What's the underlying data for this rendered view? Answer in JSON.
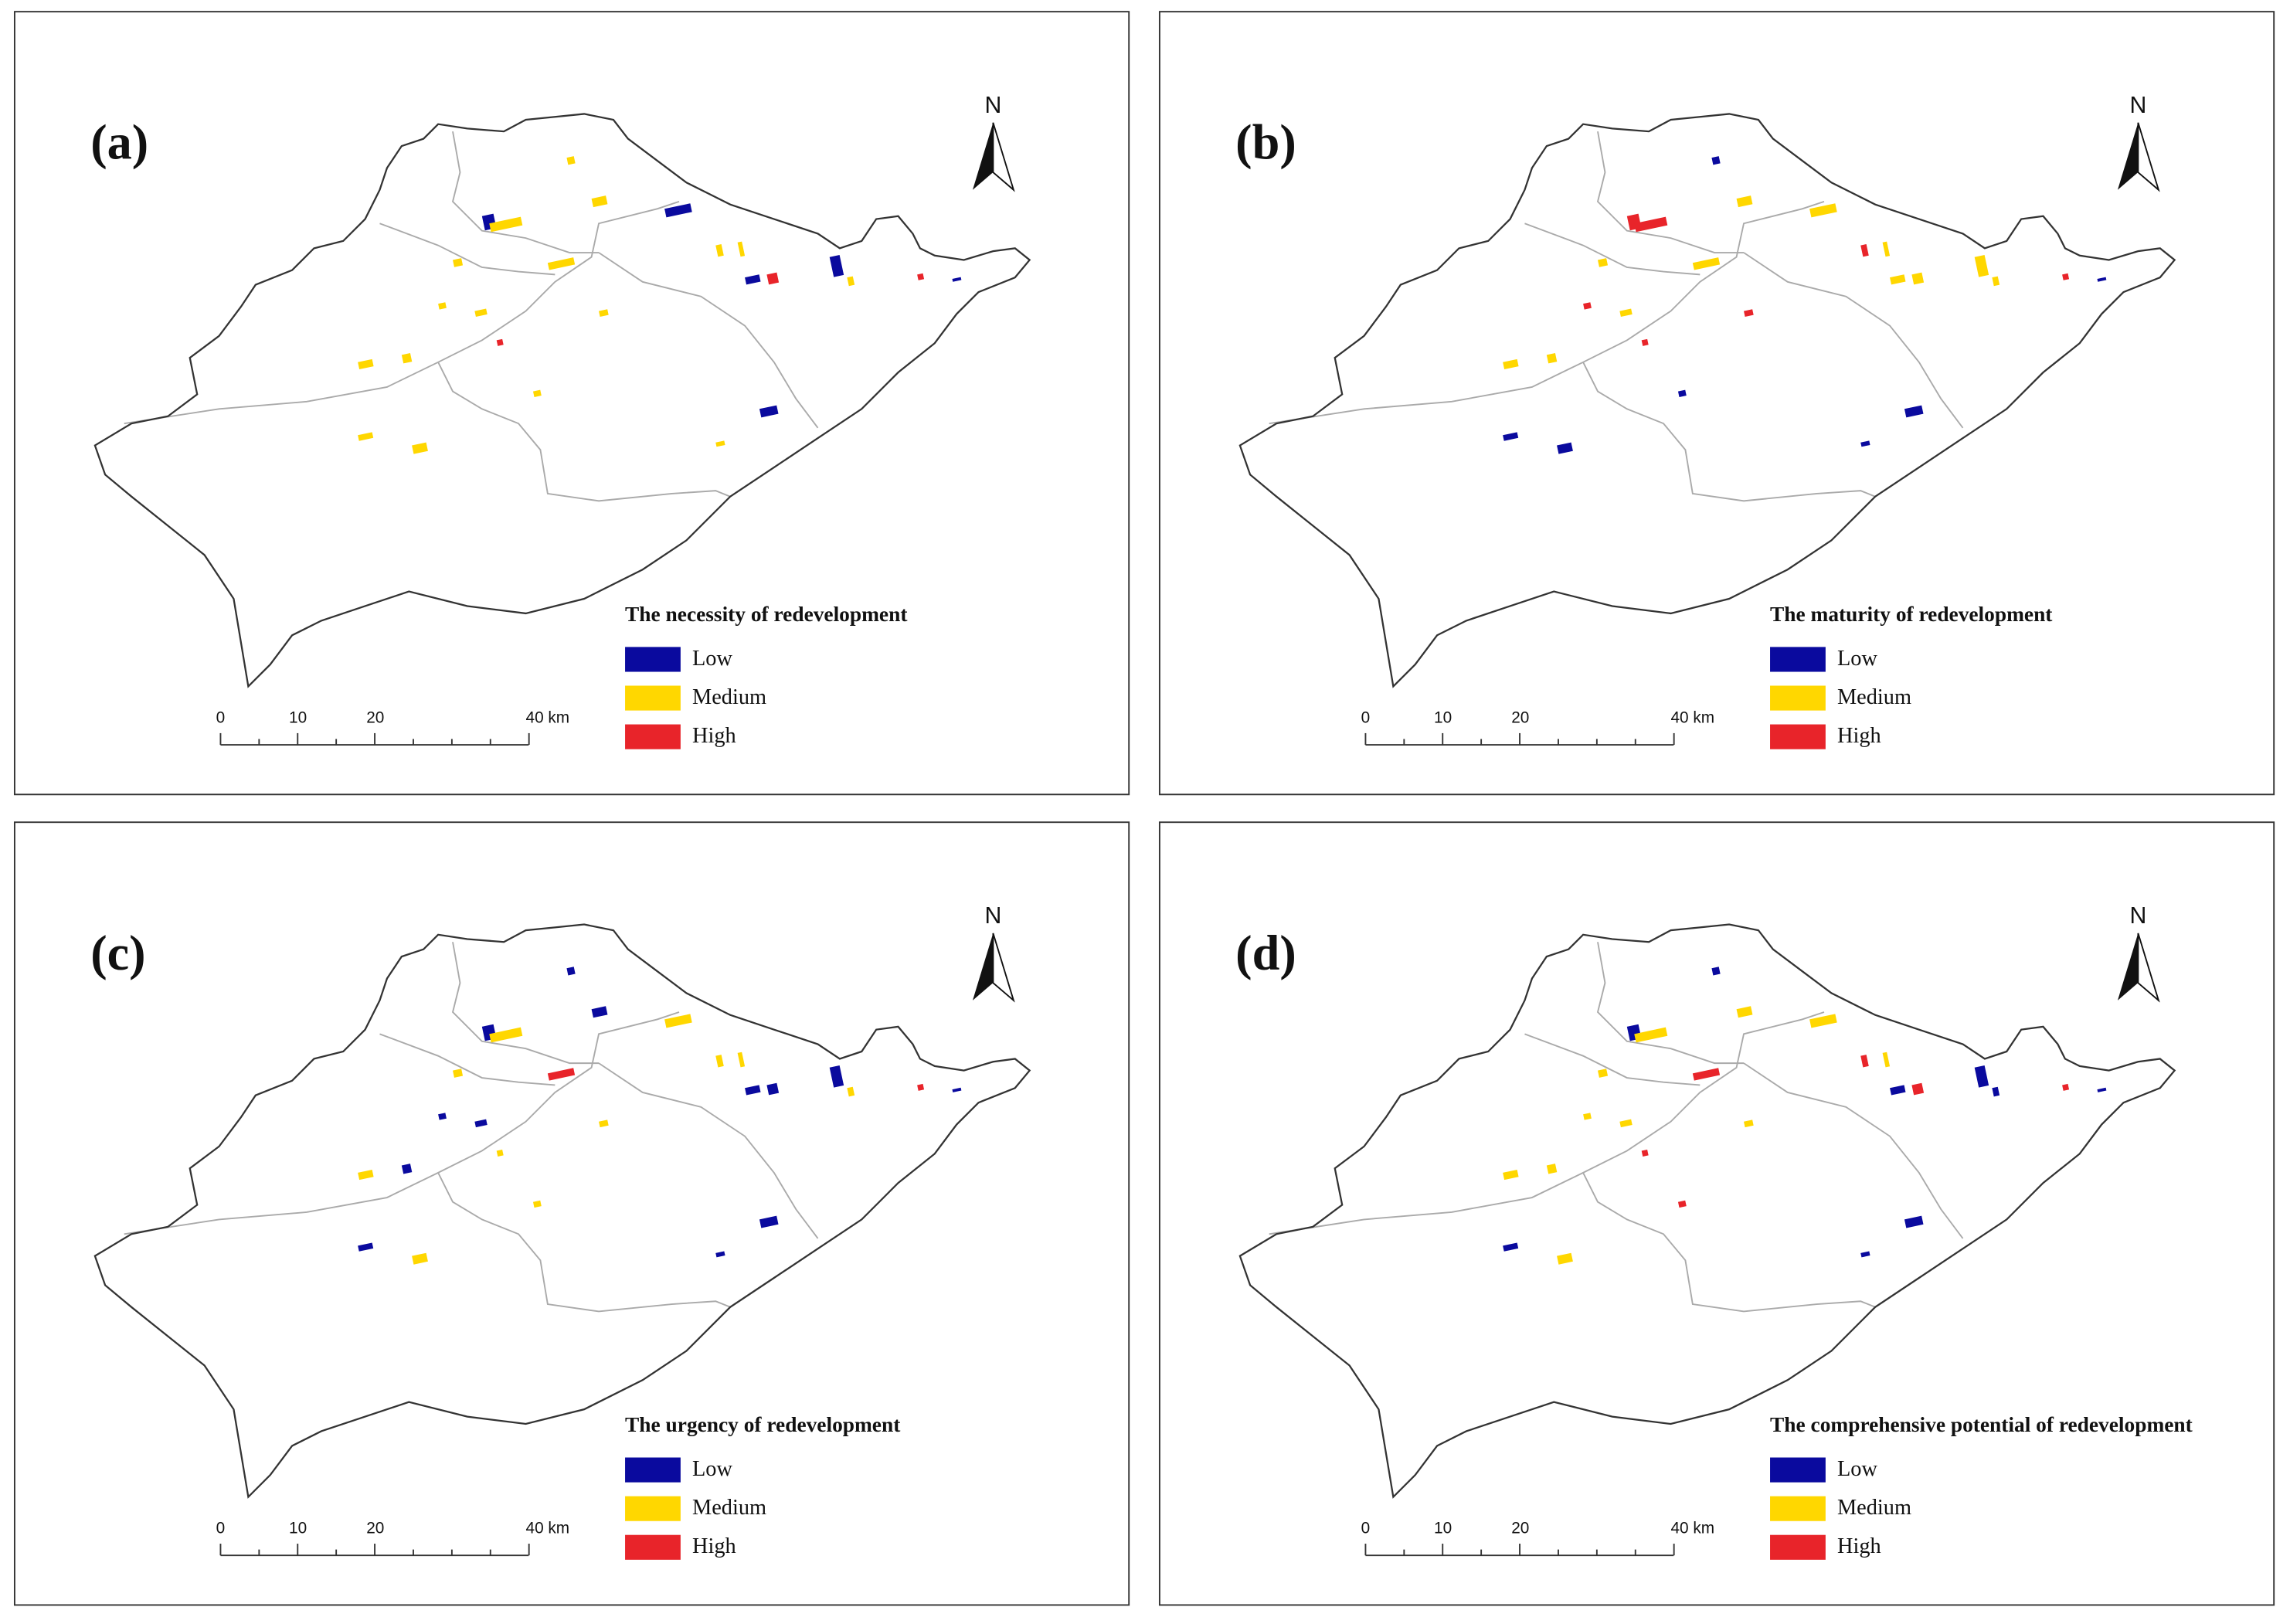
{
  "panels": [
    {
      "label": "(a)",
      "north": "N",
      "legend_title": "The necessity of redevelopment",
      "legend": [
        {
          "label": "Low",
          "color": "#0a0a9e"
        },
        {
          "label": "Medium",
          "color": "#ffd700"
        },
        {
          "label": "High",
          "color": "#e8242a"
        }
      ],
      "scale_labels": [
        "0",
        "10",
        "20",
        "40 km"
      ]
    },
    {
      "label": "(b)",
      "north": "N",
      "legend_title": "The maturity of redevelopment",
      "legend": [
        {
          "label": "Low",
          "color": "#0a0a9e"
        },
        {
          "label": "Medium",
          "color": "#ffd700"
        },
        {
          "label": "High",
          "color": "#e8242a"
        }
      ],
      "scale_labels": [
        "0",
        "10",
        "20",
        "40 km"
      ]
    },
    {
      "label": "(c)",
      "north": "N",
      "legend_title": "The urgency of redevelopment",
      "legend": [
        {
          "label": "Low",
          "color": "#0a0a9e"
        },
        {
          "label": "Medium",
          "color": "#ffd700"
        },
        {
          "label": "High",
          "color": "#e8242a"
        }
      ],
      "scale_labels": [
        "0",
        "10",
        "20",
        "40 km"
      ]
    },
    {
      "label": "(d)",
      "north": "N",
      "legend_title": "The comprehensive potential of redevelopment",
      "legend": [
        {
          "label": "Low",
          "color": "#0a0a9e"
        },
        {
          "label": "Medium",
          "color": "#ffd700"
        },
        {
          "label": "High",
          "color": "#e8242a"
        }
      ],
      "scale_labels": [
        "0",
        "10",
        "20",
        "40 km"
      ]
    }
  ]
}
